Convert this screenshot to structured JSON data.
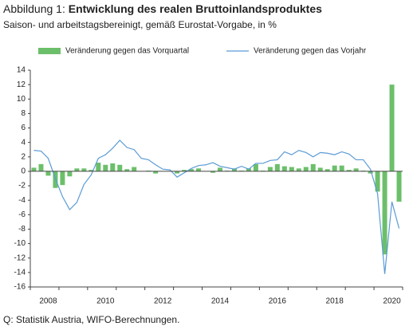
{
  "chart_data": {
    "type": "bar_line",
    "title_prefix": "Abbildung 1:",
    "title": "Entwicklung des realen Bruttoinlandsproduktes",
    "subtitle": "Saison- und arbeitstagsbereinigt, gemäß Eurostat-Vorgabe, in %",
    "source": "Q: Statistik Austria, WIFO-Berechnungen.",
    "categories": [
      null,
      null,
      "2008",
      null,
      null,
      null,
      null,
      null,
      null,
      null,
      "2010",
      null,
      null,
      null,
      null,
      null,
      null,
      null,
      "2012",
      null,
      null,
      null,
      null,
      null,
      null,
      null,
      "2014",
      null,
      null,
      null,
      null,
      null,
      null,
      null,
      "2016",
      null,
      null,
      null,
      null,
      null,
      null,
      null,
      "2018",
      null,
      null,
      null,
      null,
      null,
      null,
      null,
      "2020",
      null
    ],
    "series": [
      {
        "name": "Veränderung gegen das Vorquartal",
        "type": "bar",
        "color": "#6cbf6a",
        "values": [
          0.5,
          1.0,
          -0.6,
          -2.3,
          -1.9,
          -0.7,
          0.4,
          0.4,
          0.2,
          1.2,
          0.9,
          1.1,
          0.9,
          0.3,
          0.6,
          0.0,
          0.1,
          -0.3,
          0.0,
          0.0,
          -0.3,
          0.2,
          0.3,
          0.4,
          0.0,
          -0.2,
          0.5,
          0.1,
          0.4,
          0.1,
          0.4,
          1.0,
          0.1,
          0.6,
          1.0,
          0.7,
          0.6,
          0.4,
          0.6,
          1.0,
          0.5,
          0.3,
          0.8,
          0.8,
          0.2,
          0.4,
          0.1,
          -0.3,
          -2.8,
          -11.5,
          12.0,
          -4.2
        ]
      },
      {
        "name": "Veränderung gegen das Vorjahr",
        "type": "line",
        "color": "#5b9bd5",
        "values": [
          2.9,
          2.8,
          1.8,
          -1.0,
          -3.5,
          -5.3,
          -4.3,
          -1.8,
          -0.5,
          1.8,
          2.3,
          3.2,
          4.3,
          3.3,
          3.0,
          1.8,
          1.6,
          0.9,
          0.3,
          0.2,
          -0.8,
          -0.2,
          0.4,
          0.8,
          0.9,
          1.2,
          0.7,
          0.5,
          0.3,
          0.7,
          0.3,
          1.1,
          1.1,
          1.5,
          1.6,
          2.7,
          2.3,
          2.9,
          2.6,
          2.0,
          2.6,
          2.5,
          2.3,
          2.7,
          2.4,
          1.6,
          1.6,
          0.3,
          -3.1,
          -14.2,
          -4.2,
          -7.9
        ]
      }
    ],
    "ylim": [
      -16,
      14
    ],
    "yticks": [
      -16,
      -14,
      -12,
      -10,
      -8,
      -6,
      -4,
      -2,
      0,
      2,
      4,
      6,
      8,
      10,
      12,
      14
    ]
  }
}
